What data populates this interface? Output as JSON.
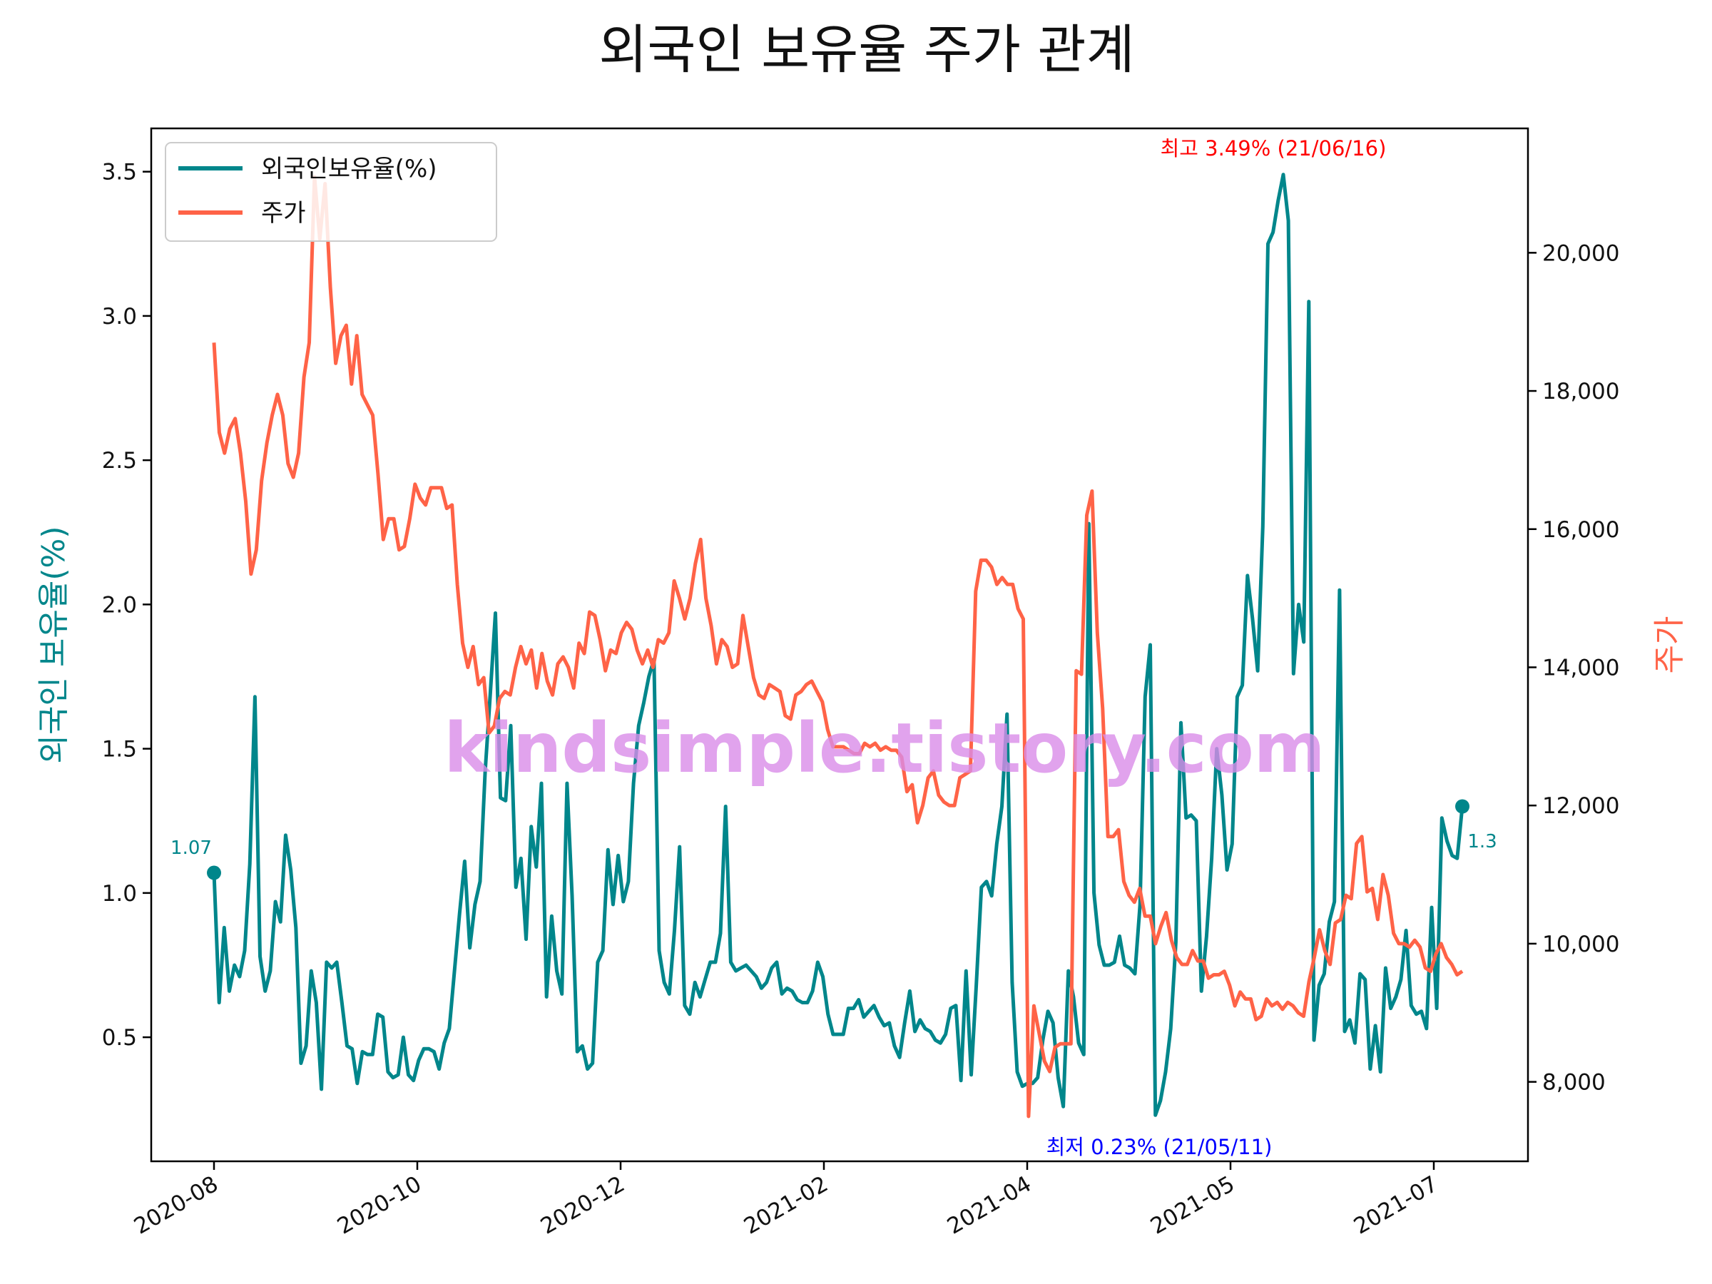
{
  "chart_data": {
    "type": "line",
    "title": "외국인 보유율 주가 관계",
    "xlabel": "",
    "ylabel_left": "외국인 보유율(%)",
    "ylabel_right": "주가",
    "ylim_left": [
      0.07,
      3.65
    ],
    "ylim_right": [
      6850,
      21800
    ],
    "x_tick_labels": [
      "2020-08",
      "2020-10",
      "2020-12",
      "2021-02",
      "2021-04",
      "2021-05",
      "2021-07"
    ],
    "y_left_tick_labels": [
      "0.5",
      "1.0",
      "1.5",
      "2.0",
      "2.5",
      "3.0",
      "3.5"
    ],
    "y_right_tick_labels": [
      "8,000",
      "10,000",
      "12,000",
      "14,000",
      "16,000",
      "18,000",
      "20,000"
    ],
    "legend": {
      "position": "top-left",
      "entries": [
        {
          "label": "외국인보유율(%)",
          "color": "#00868B"
        },
        {
          "label": "주가",
          "color": "#FF6347"
        }
      ]
    },
    "series": [
      {
        "name": "외국인보유율(%)",
        "axis": "left",
        "color": "#00868B",
        "values": [
          1.07,
          0.62,
          0.88,
          0.66,
          0.75,
          0.71,
          0.8,
          1.1,
          1.68,
          0.78,
          0.66,
          0.73,
          0.97,
          0.9,
          1.2,
          1.08,
          0.88,
          0.41,
          0.47,
          0.73,
          0.62,
          0.32,
          0.76,
          0.74,
          0.76,
          0.62,
          0.47,
          0.46,
          0.34,
          0.45,
          0.44,
          0.44,
          0.58,
          0.57,
          0.38,
          0.36,
          0.37,
          0.5,
          0.37,
          0.35,
          0.42,
          0.46,
          0.46,
          0.45,
          0.39,
          0.48,
          0.53,
          0.73,
          0.93,
          1.11,
          0.81,
          0.96,
          1.04,
          1.42,
          1.69,
          1.97,
          1.33,
          1.32,
          1.58,
          1.02,
          1.12,
          0.84,
          1.23,
          1.09,
          1.38,
          0.64,
          0.92,
          0.73,
          0.65,
          1.38,
          0.99,
          0.45,
          0.47,
          0.39,
          0.41,
          0.76,
          0.8,
          1.15,
          0.96,
          1.13,
          0.97,
          1.04,
          1.38,
          1.58,
          1.66,
          1.75,
          1.81,
          0.8,
          0.69,
          0.65,
          0.87,
          1.16,
          0.61,
          0.58,
          0.69,
          0.64,
          0.7,
          0.76,
          0.76,
          0.86,
          1.3,
          0.76,
          0.73,
          0.74,
          0.75,
          0.73,
          0.71,
          0.67,
          0.69,
          0.74,
          0.76,
          0.65,
          0.67,
          0.66,
          0.63,
          0.62,
          0.62,
          0.66,
          0.76,
          0.71,
          0.58,
          0.51,
          0.51,
          0.51,
          0.6,
          0.6,
          0.63,
          0.57,
          0.59,
          0.61,
          0.57,
          0.54,
          0.55,
          0.47,
          0.43,
          0.55,
          0.66,
          0.52,
          0.56,
          0.53,
          0.52,
          0.49,
          0.48,
          0.51,
          0.6,
          0.61,
          0.35,
          0.73,
          0.37,
          0.68,
          1.02,
          1.04,
          0.99,
          1.17,
          1.3,
          1.62,
          0.69,
          0.38,
          0.33,
          0.34,
          0.34,
          0.36,
          0.49,
          0.59,
          0.55,
          0.36,
          0.26,
          0.73,
          0.64,
          0.48,
          0.44,
          2.28,
          1.0,
          0.82,
          0.75,
          0.75,
          0.76,
          0.85,
          0.75,
          0.74,
          0.72,
          0.96,
          1.68,
          1.86,
          0.23,
          0.28,
          0.38,
          0.53,
          0.83,
          1.59,
          1.26,
          1.27,
          1.25,
          0.66,
          0.85,
          1.12,
          1.5,
          1.34,
          1.08,
          1.17,
          1.68,
          1.72,
          2.1,
          1.95,
          1.77,
          2.27,
          3.25,
          3.29,
          3.4,
          3.49,
          3.33,
          1.76,
          2.0,
          1.87,
          3.05,
          0.49,
          0.68,
          0.72,
          0.9,
          0.97,
          2.05,
          0.52,
          0.56,
          0.48,
          0.72,
          0.7,
          0.39,
          0.54,
          0.38,
          0.74,
          0.6,
          0.64,
          0.7,
          0.87,
          0.61,
          0.58,
          0.59,
          0.53,
          0.95,
          0.6,
          1.26,
          1.18,
          1.13,
          1.12,
          1.3
        ]
      },
      {
        "name": "주가",
        "axis": "right",
        "color": "#FF6347",
        "values": [
          18700,
          17400,
          17100,
          17450,
          17600,
          17100,
          16400,
          15350,
          15700,
          16700,
          17250,
          17650,
          17950,
          17650,
          16950,
          16750,
          17100,
          18200,
          18700,
          21100,
          20200,
          21000,
          19500,
          18400,
          18800,
          18950,
          18100,
          18800,
          17950,
          17800,
          17650,
          16800,
          15850,
          16150,
          16150,
          15700,
          15750,
          16150,
          16650,
          16450,
          16350,
          16600,
          16600,
          16600,
          16300,
          16350,
          15200,
          14350,
          14000,
          14300,
          13750,
          13850,
          13050,
          13150,
          13550,
          13650,
          13600,
          14000,
          14300,
          14050,
          14250,
          13700,
          14200,
          13800,
          13600,
          14050,
          14150,
          14000,
          13700,
          14350,
          14200,
          14800,
          14750,
          14400,
          13950,
          14250,
          14200,
          14500,
          14650,
          14550,
          14250,
          14050,
          14250,
          14000,
          14400,
          14350,
          14500,
          15250,
          15000,
          14700,
          15000,
          15500,
          15850,
          15000,
          14600,
          14050,
          14400,
          14300,
          14000,
          14050,
          14750,
          14300,
          13850,
          13600,
          13550,
          13750,
          13700,
          13650,
          13300,
          13250,
          13600,
          13650,
          13750,
          13800,
          13650,
          13500,
          13100,
          12850,
          12850,
          12850,
          12800,
          12750,
          12750,
          12900,
          12850,
          12900,
          12800,
          12850,
          12800,
          12800,
          12700,
          12200,
          12300,
          11750,
          12000,
          12400,
          12500,
          12150,
          12050,
          12000,
          12000,
          12400,
          12450,
          12500,
          15100,
          15550,
          15550,
          15450,
          15200,
          15300,
          15200,
          15200,
          14850,
          14700,
          7500,
          9100,
          8700,
          8300,
          8150,
          8500,
          8550,
          8550,
          8550,
          13950,
          13900,
          16200,
          16550,
          14500,
          13400,
          11550,
          11550,
          11650,
          10900,
          10700,
          10600,
          10800,
          10400,
          10400,
          10000,
          10250,
          10450,
          10050,
          9800,
          9700,
          9700,
          9900,
          9750,
          9750,
          9500,
          9550,
          9550,
          9600,
          9400,
          9100,
          9300,
          9200,
          9200,
          8900,
          8950,
          9200,
          9100,
          9150,
          9050,
          9150,
          9100,
          9000,
          8950,
          9450,
          9800,
          10200,
          9900,
          9700,
          10300,
          10350,
          10700,
          10650,
          11450,
          11550,
          10750,
          10800,
          10350,
          11000,
          10700,
          10150,
          10000,
          10000,
          9950,
          10050,
          9950,
          9650,
          9600,
          9850,
          10000,
          9800,
          9700,
          9550,
          9600
        ]
      }
    ],
    "annotations": {
      "max": {
        "label": "최고 3.49% (21/06/16)",
        "color": "#FF0000"
      },
      "min": {
        "label": "최저 0.23% (21/05/11)",
        "color": "#0000FF"
      },
      "start": {
        "label": "1.07",
        "color": "#00868B"
      },
      "end": {
        "label": "1.3",
        "color": "#00868B"
      }
    },
    "watermark": "kindsimple.tistory.com"
  }
}
